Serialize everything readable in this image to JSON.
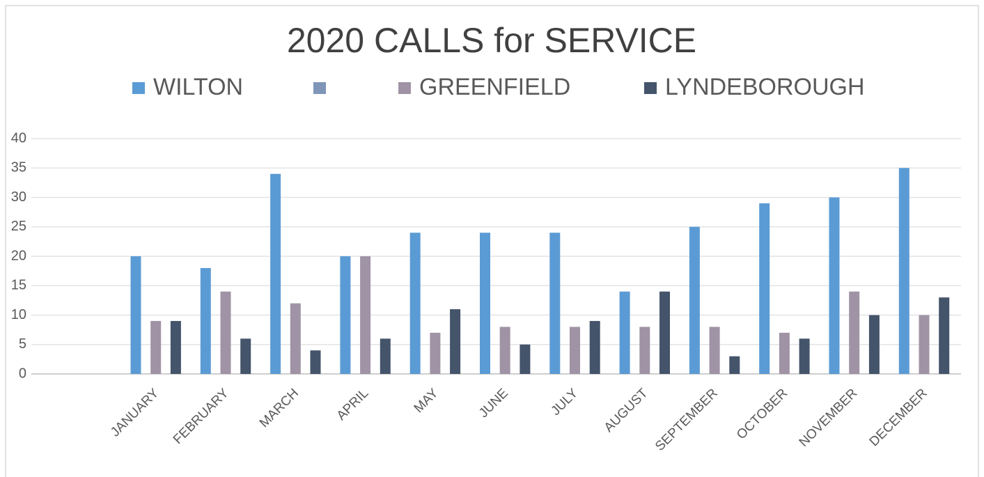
{
  "chart_data": {
    "type": "bar",
    "title": "2020 CALLS for SERVICE",
    "categories": [
      "JANUARY",
      "FEBRUARY",
      "MARCH",
      "APRIL",
      "MAY",
      "JUNE",
      "JULY",
      "AUGUST",
      "SEPTEMBER",
      "OCTOBER",
      "NOVEMBER",
      "DECEMBER"
    ],
    "series": [
      {
        "name": "WILTON",
        "color": "#5b9bd5",
        "values": [
          20,
          18,
          34,
          20,
          24,
          24,
          24,
          14,
          25,
          29,
          30,
          35
        ]
      },
      {
        "color": "#7f96b8",
        "values": [
          null,
          null,
          null,
          null,
          null,
          null,
          null,
          null,
          null,
          null,
          null,
          null
        ]
      },
      {
        "name": "GREENFIELD",
        "color": "#a093a5",
        "values": [
          9,
          14,
          12,
          20,
          7,
          8,
          8,
          8,
          8,
          7,
          14,
          10
        ]
      },
      {
        "name": "LYNDEBOROUGH",
        "color": "#44546a",
        "values": [
          9,
          6,
          4,
          6,
          11,
          5,
          9,
          14,
          3,
          6,
          10,
          13
        ]
      }
    ],
    "ylim": [
      0,
      40
    ],
    "yticks": [
      0,
      5,
      10,
      15,
      20,
      25,
      30,
      35,
      40
    ],
    "grid": true,
    "legend": "top"
  }
}
